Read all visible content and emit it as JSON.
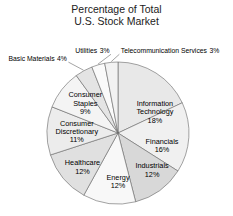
{
  "chart_data": {
    "type": "pie",
    "title": "Percentage of Total\nU.S. Stock Market",
    "categories": [
      "Information\nTechnology",
      "Financials",
      "Industrials",
      "Energy",
      "Healthcare",
      "Consumer\nDiscretionary",
      "Consumer\nStaples",
      "Basic Materials",
      "Utilities",
      "Telecommunication Services"
    ],
    "values": [
      18,
      16,
      12,
      12,
      12,
      11,
      9,
      4,
      3,
      3
    ],
    "value_labels": [
      "18%",
      "16%",
      "12%",
      "12%",
      "12%",
      "11%",
      "9%",
      "4%",
      "3%",
      "3%"
    ],
    "data_labels": true,
    "colors": [
      "#e8e8e8",
      "#f0f0f0",
      "#d8d8d8",
      "#f8f8f8",
      "#e0e0e0",
      "#ececec",
      "#f4f4f4",
      "#e4e4e4",
      "#fafafa",
      "#f2f2f2"
    ]
  }
}
